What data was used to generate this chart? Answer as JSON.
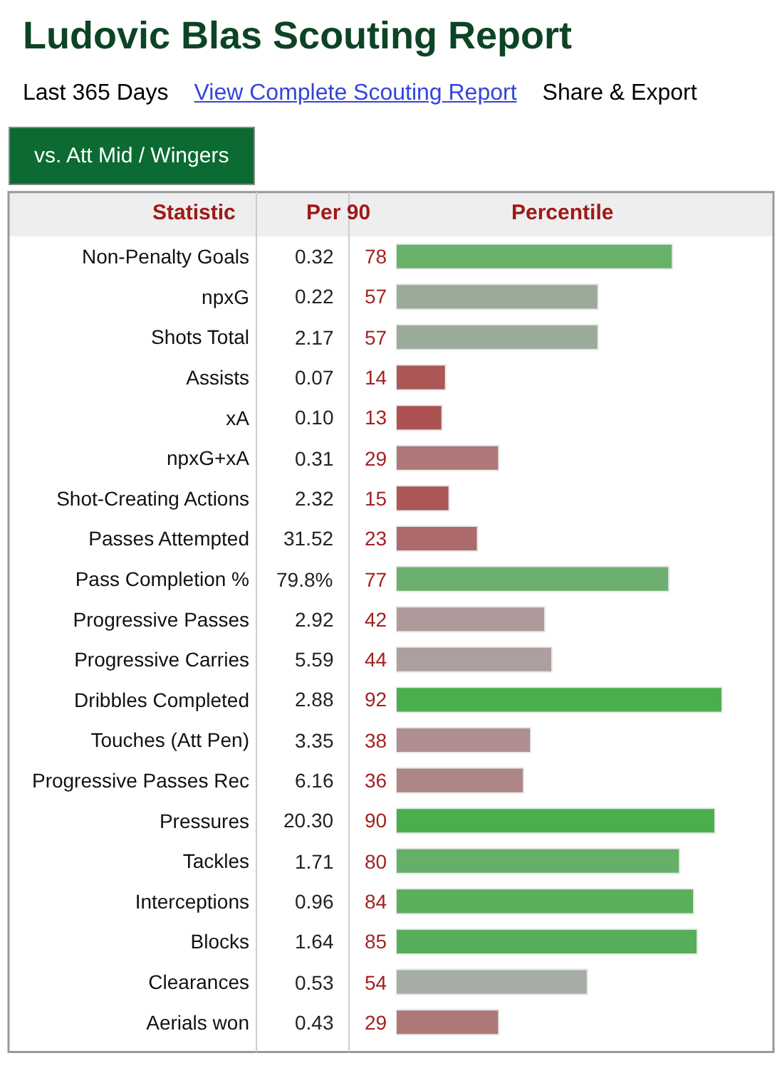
{
  "chart_data": {
    "type": "bar",
    "orientation": "horizontal",
    "title": "Ludovic Blas Scouting Report",
    "subtitle": "Last 365 Days",
    "categories": [
      "Non-Penalty Goals",
      "npxG",
      "Shots Total",
      "Assists",
      "xA",
      "npxG+xA",
      "Shot-Creating Actions",
      "Passes Attempted",
      "Pass Completion %",
      "Progressive Passes",
      "Progressive Carries",
      "Dribbles Completed",
      "Touches (Att Pen)",
      "Progressive Passes Rec",
      "Pressures",
      "Tackles",
      "Interceptions",
      "Blocks",
      "Clearances",
      "Aerials won"
    ],
    "values": [
      78,
      57,
      57,
      14,
      13,
      29,
      15,
      23,
      77,
      42,
      44,
      92,
      38,
      36,
      90,
      80,
      84,
      85,
      54,
      29
    ],
    "colors": [
      "#68b16b",
      "#9aab9a",
      "#9aab9a",
      "#ac5656",
      "#ac5252",
      "#ae7878",
      "#ac5656",
      "#ad6a6a",
      "#6daf6f",
      "#ae9a9a",
      "#ad9f9f",
      "#49ae4b",
      "#ae8e8e",
      "#ad8686",
      "#4aae4c",
      "#65b068",
      "#5aaf5c",
      "#57ae5a",
      "#a5ada5",
      "#ae7878"
    ],
    "data_labels": true,
    "legend": false,
    "grid": false,
    "tick_labels": "y",
    "annotations": [
      "View Complete Scouting Report",
      "Share & Export",
      "vs. Att Mid / Wingers",
      "Statistic",
      "Per 90",
      "Percentile",
      "0.32",
      "0.22",
      "2.17",
      "0.07",
      "0.10",
      "0.31",
      "2.32",
      "31.52",
      "79.8%",
      "2.92",
      "5.59",
      "2.88",
      "3.35",
      "6.16",
      "20.30",
      "1.71",
      "0.96",
      "1.64",
      "0.53",
      "0.43"
    ]
  }
}
